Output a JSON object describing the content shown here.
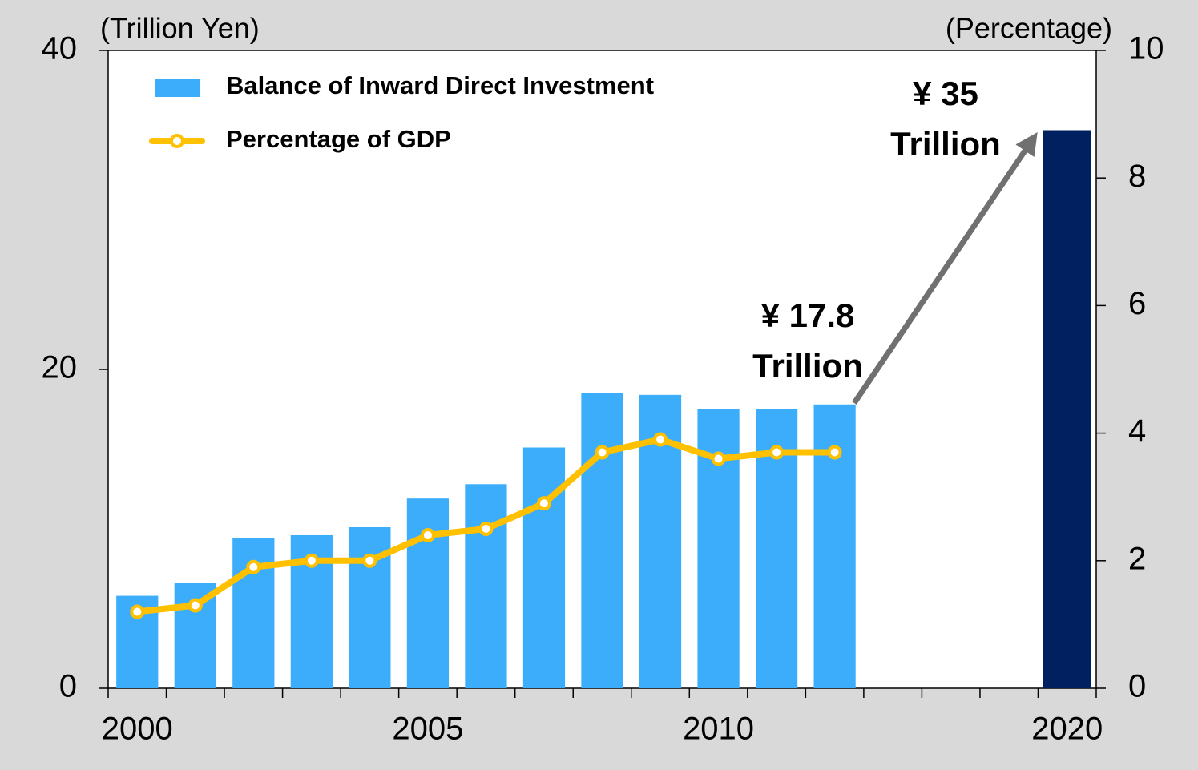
{
  "chart_data": {
    "type": "bar",
    "y_axis_label": "(Trillion Yen)",
    "y2_axis_label": "(Percentage)",
    "categories": [
      "2000",
      null,
      null,
      null,
      null,
      "2005",
      null,
      null,
      null,
      null,
      "2010",
      null,
      null,
      null,
      null,
      null,
      "2020"
    ],
    "series": [
      {
        "name": "Balance of Inward Direct Investment",
        "type": "bar",
        "color": "#3badfb",
        "colors": [
          "#3badfb",
          "#3badfb",
          "#3badfb",
          "#3badfb",
          "#3badfb",
          "#3badfb",
          "#3badfb",
          "#3badfb",
          "#3badfb",
          "#3badfb",
          "#3badfb",
          "#3badfb",
          "#3badfb",
          null,
          null,
          null,
          "#002060"
        ],
        "values": [
          5.8,
          6.6,
          9.4,
          9.6,
          10.1,
          11.9,
          12.8,
          15.1,
          18.5,
          18.4,
          17.5,
          17.5,
          17.8,
          null,
          null,
          null,
          35
        ]
      },
      {
        "name": "Percentage of GDP",
        "type": "line",
        "color": "#ffc000",
        "axis": "y2",
        "values": [
          1.2,
          1.3,
          1.9,
          2.0,
          2.0,
          2.4,
          2.5,
          2.9,
          3.7,
          3.9,
          3.6,
          3.7,
          3.7,
          null,
          null,
          null,
          null
        ]
      }
    ],
    "ylim": [
      0,
      40
    ],
    "yticks": [
      0,
      20,
      40
    ],
    "y2lim": [
      0,
      10
    ],
    "y2ticks": [
      0,
      2,
      4,
      6,
      8,
      10
    ],
    "annotations": [
      "¥ 17.8",
      "Trillion",
      "¥ 35",
      "Trillion"
    ]
  }
}
